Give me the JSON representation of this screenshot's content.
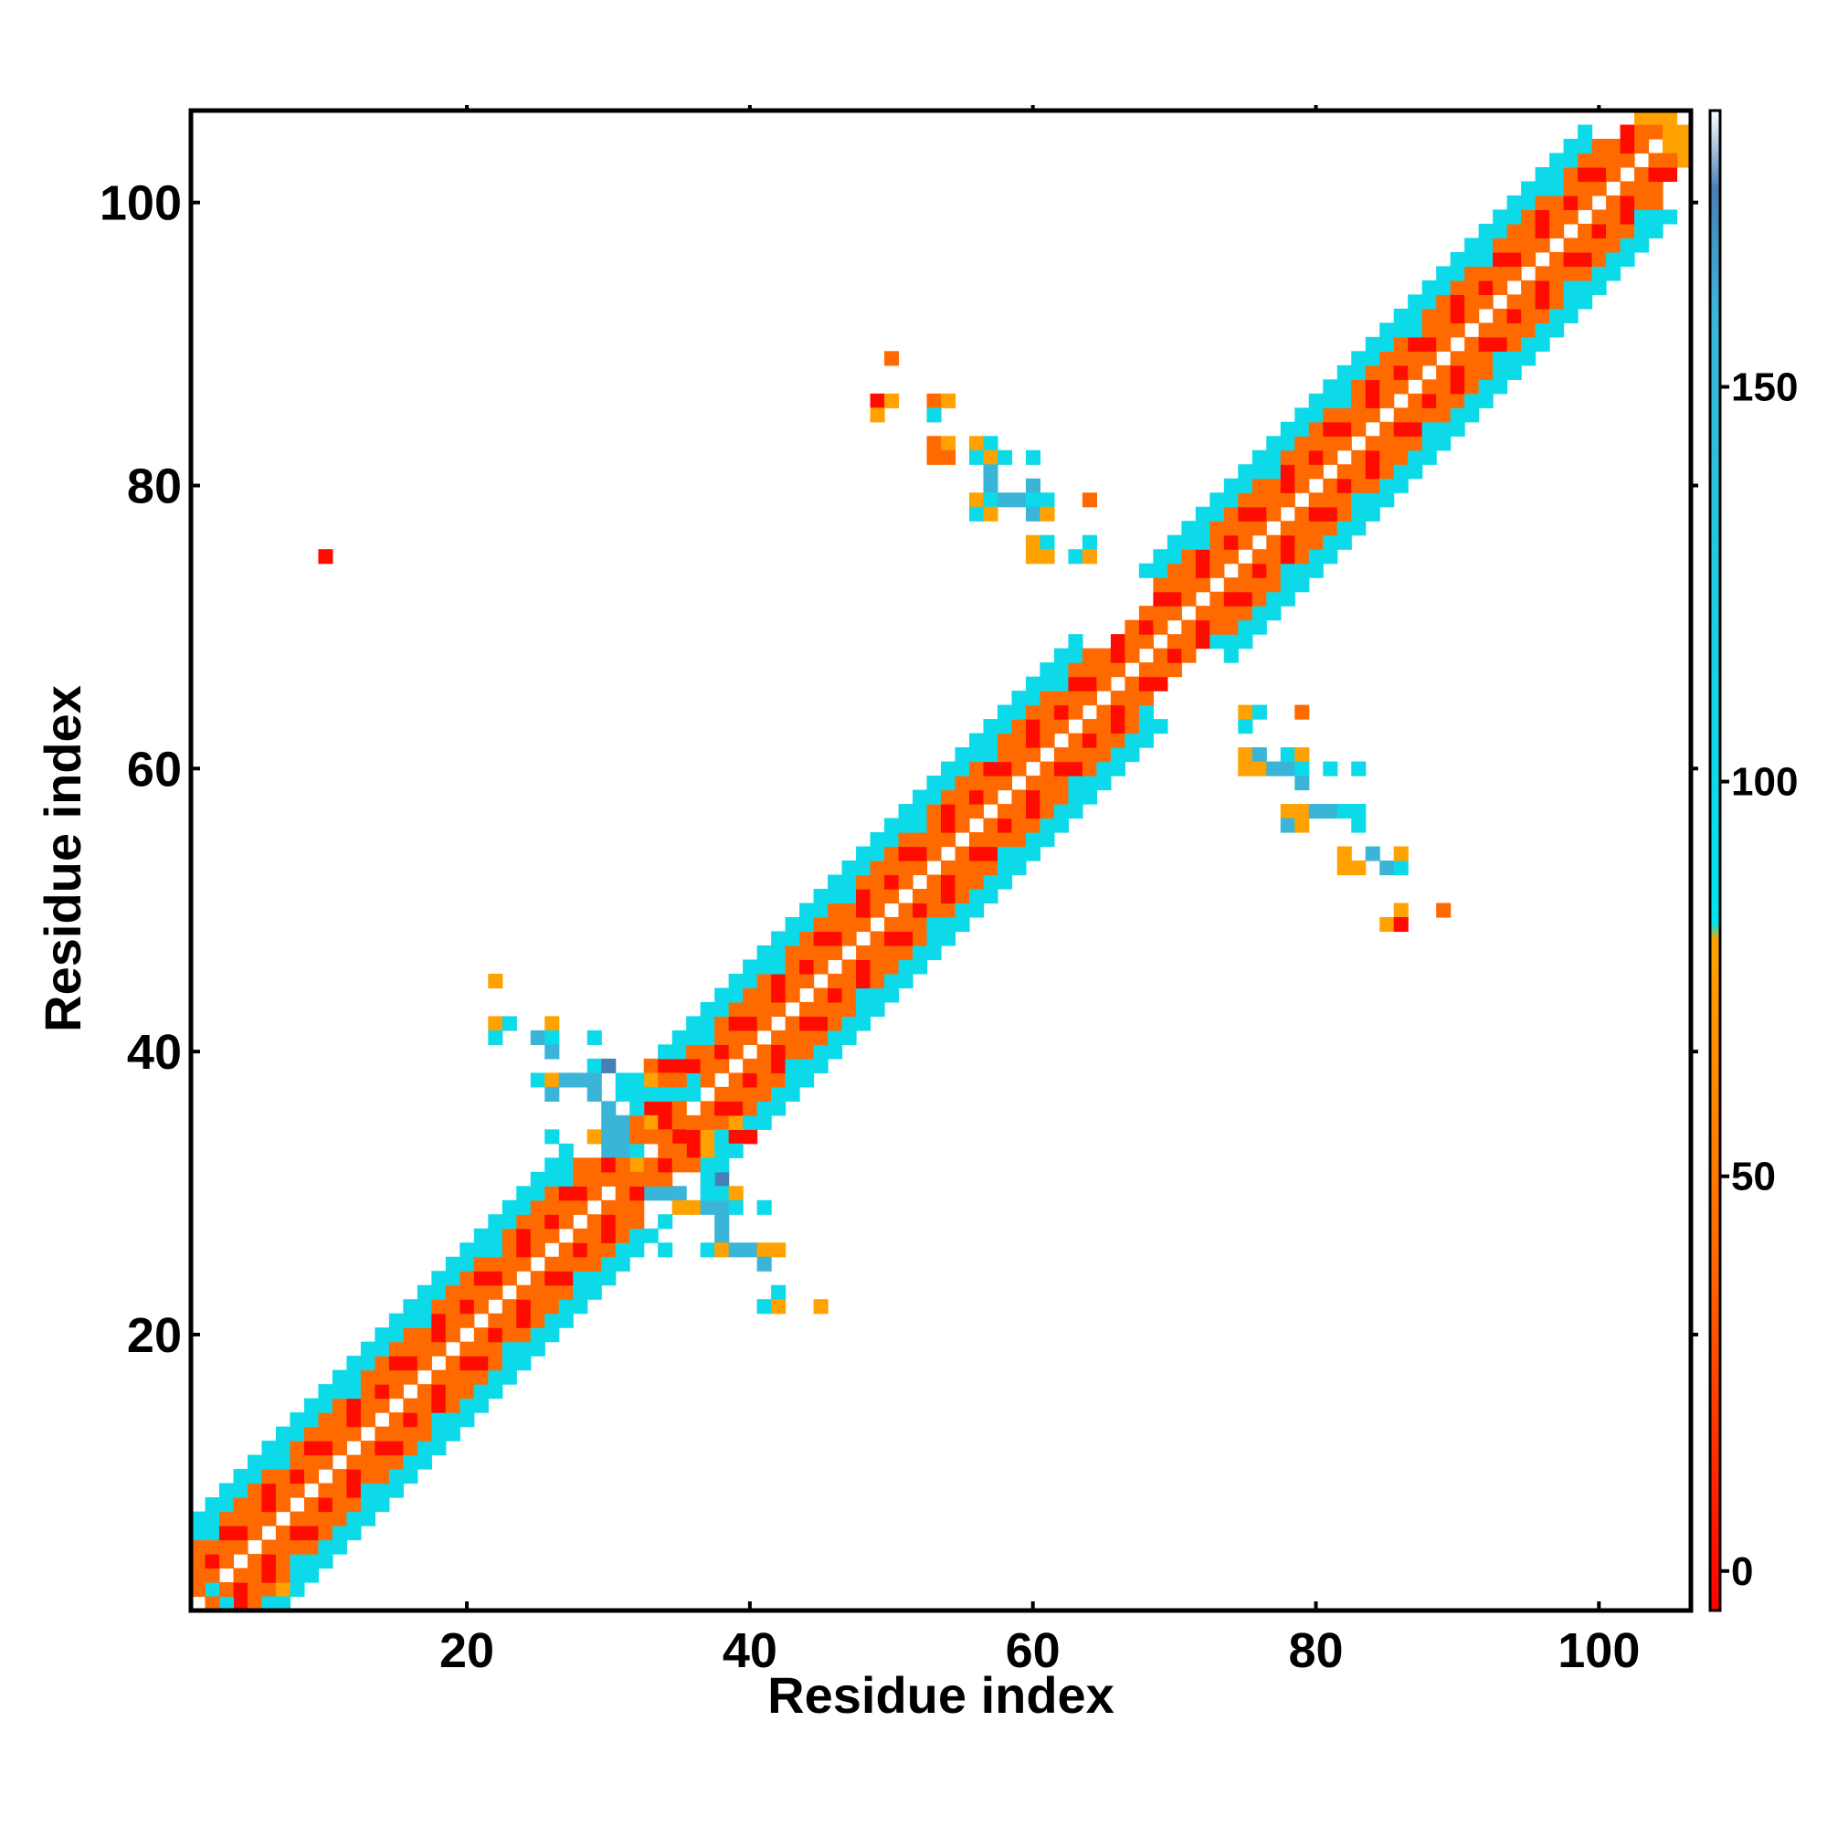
{
  "chart_data": {
    "type": "heatmap",
    "title": "",
    "xlabel": "Residue index",
    "ylabel": "Residue index",
    "xlim": [
      1,
      106
    ],
    "ylim": [
      1,
      106
    ],
    "x_ticks": [
      20,
      40,
      60,
      80,
      100
    ],
    "y_ticks": [
      20,
      40,
      60,
      80,
      100
    ],
    "grid": false,
    "colorbar": {
      "range": [
        -5,
        185
      ],
      "ticks": [
        0,
        50,
        100,
        150
      ],
      "color_stops": [
        {
          "value": -5,
          "color": "#ff0000"
        },
        {
          "value": 40,
          "color": "#ff6a00"
        },
        {
          "value": 80,
          "color": "#ffa200"
        },
        {
          "value": 82,
          "color": "#00e5ee"
        },
        {
          "value": 160,
          "color": "#3ab5d8"
        },
        {
          "value": 175,
          "color": "#4a7fb5"
        },
        {
          "value": 185,
          "color": "#ffffff"
        }
      ]
    },
    "cells": [
      {
        "x": 4,
        "y": 1,
        "v": 0
      },
      {
        "x": 5,
        "y": 1,
        "v": 40
      },
      {
        "x": 6,
        "y": 2,
        "v": 40
      },
      {
        "x": 7,
        "y": 2,
        "v": 80
      },
      {
        "x": 3,
        "y": 1,
        "v": 100
      },
      {
        "x": 2,
        "y": 2,
        "v": 100
      },
      {
        "x": 1,
        "y": 3,
        "v": 40
      },
      {
        "x": 10,
        "y": 75,
        "v": 0
      },
      {
        "x": 22,
        "y": 45,
        "v": 80
      },
      {
        "x": 22,
        "y": 42,
        "v": 80
      },
      {
        "x": 23,
        "y": 42,
        "v": 100
      },
      {
        "x": 22,
        "y": 41,
        "v": 100
      },
      {
        "x": 25,
        "y": 41,
        "v": 160
      },
      {
        "x": 26,
        "y": 42,
        "v": 80
      },
      {
        "x": 26,
        "y": 41,
        "v": 100
      },
      {
        "x": 29,
        "y": 41,
        "v": 100
      },
      {
        "x": 26,
        "y": 40,
        "v": 160
      },
      {
        "x": 29,
        "y": 39,
        "v": 100
      },
      {
        "x": 30,
        "y": 39,
        "v": 175
      },
      {
        "x": 25,
        "y": 38,
        "v": 100
      },
      {
        "x": 26,
        "y": 38,
        "v": 80
      },
      {
        "x": 27,
        "y": 38,
        "v": 160
      },
      {
        "x": 28,
        "y": 38,
        "v": 160
      },
      {
        "x": 29,
        "y": 38,
        "v": 160
      },
      {
        "x": 31,
        "y": 38,
        "v": 100
      },
      {
        "x": 26,
        "y": 37,
        "v": 160
      },
      {
        "x": 29,
        "y": 37,
        "v": 160
      },
      {
        "x": 30,
        "y": 36,
        "v": 160
      },
      {
        "x": 26,
        "y": 34,
        "v": 100
      },
      {
        "x": 29,
        "y": 34,
        "v": 80
      },
      {
        "x": 30,
        "y": 35,
        "v": 160
      },
      {
        "x": 31,
        "y": 35,
        "v": 160
      },
      {
        "x": 30,
        "y": 34,
        "v": 160
      },
      {
        "x": 31,
        "y": 34,
        "v": 160
      },
      {
        "x": 30,
        "y": 33,
        "v": 160
      },
      {
        "x": 31,
        "y": 33,
        "v": 160
      },
      {
        "x": 32,
        "y": 33,
        "v": 100
      },
      {
        "x": 33,
        "y": 30,
        "v": 160
      },
      {
        "x": 34,
        "y": 30,
        "v": 160
      },
      {
        "x": 35,
        "y": 30,
        "v": 160
      },
      {
        "x": 35,
        "y": 29,
        "v": 80
      },
      {
        "x": 36,
        "y": 29,
        "v": 80
      },
      {
        "x": 37,
        "y": 29,
        "v": 160
      },
      {
        "x": 38,
        "y": 29,
        "v": 160
      },
      {
        "x": 38,
        "y": 31,
        "v": 175
      },
      {
        "x": 37,
        "y": 30,
        "v": 100
      },
      {
        "x": 38,
        "y": 30,
        "v": 100
      },
      {
        "x": 39,
        "y": 30,
        "v": 80
      },
      {
        "x": 39,
        "y": 29,
        "v": 100
      },
      {
        "x": 41,
        "y": 29,
        "v": 100
      },
      {
        "x": 38,
        "y": 28,
        "v": 160
      },
      {
        "x": 38,
        "y": 27,
        "v": 160
      },
      {
        "x": 34,
        "y": 28,
        "v": 100
      },
      {
        "x": 34,
        "y": 26,
        "v": 100
      },
      {
        "x": 37,
        "y": 26,
        "v": 100
      },
      {
        "x": 38,
        "y": 26,
        "v": 80
      },
      {
        "x": 39,
        "y": 26,
        "v": 160
      },
      {
        "x": 40,
        "y": 26,
        "v": 160
      },
      {
        "x": 41,
        "y": 26,
        "v": 80
      },
      {
        "x": 42,
        "y": 26,
        "v": 80
      },
      {
        "x": 41,
        "y": 25,
        "v": 160
      },
      {
        "x": 42,
        "y": 23,
        "v": 100
      },
      {
        "x": 41,
        "y": 22,
        "v": 100
      },
      {
        "x": 42,
        "y": 22,
        "v": 80
      },
      {
        "x": 45,
        "y": 22,
        "v": 80
      },
      {
        "x": 33,
        "y": 36,
        "v": 0
      },
      {
        "x": 34,
        "y": 36,
        "v": 0
      },
      {
        "x": 33,
        "y": 35,
        "v": 80
      },
      {
        "x": 34,
        "y": 35,
        "v": 0
      },
      {
        "x": 35,
        "y": 35,
        "v": 40
      },
      {
        "x": 35,
        "y": 34,
        "v": 0
      },
      {
        "x": 36,
        "y": 34,
        "v": 0
      },
      {
        "x": 34,
        "y": 34,
        "v": 40
      },
      {
        "x": 36,
        "y": 33,
        "v": 0
      },
      {
        "x": 37,
        "y": 34,
        "v": 80
      },
      {
        "x": 37,
        "y": 33,
        "v": 80
      },
      {
        "x": 38,
        "y": 35,
        "v": 40
      },
      {
        "x": 38,
        "y": 34,
        "v": 100
      },
      {
        "x": 39,
        "y": 34,
        "v": 0
      },
      {
        "x": 40,
        "y": 34,
        "v": 0
      },
      {
        "x": 39,
        "y": 35,
        "v": 80
      },
      {
        "x": 33,
        "y": 39,
        "v": 40
      },
      {
        "x": 34,
        "y": 39,
        "v": 0
      },
      {
        "x": 35,
        "y": 39,
        "v": 0
      },
      {
        "x": 33,
        "y": 38,
        "v": 80
      },
      {
        "x": 36,
        "y": 38,
        "v": 100
      },
      {
        "x": 35,
        "y": 37,
        "v": 100
      },
      {
        "x": 36,
        "y": 37,
        "v": 100
      },
      {
        "x": 34,
        "y": 37,
        "v": 100
      },
      {
        "x": 33,
        "y": 37,
        "v": 100
      },
      {
        "x": 32,
        "y": 32,
        "v": 80
      },
      {
        "x": 32,
        "y": 34,
        "v": 40
      },
      {
        "x": 31,
        "y": 31,
        "v": 40
      },
      {
        "x": 50,
        "y": 89,
        "v": 40
      },
      {
        "x": 49,
        "y": 86,
        "v": 0
      },
      {
        "x": 50,
        "y": 86,
        "v": 80
      },
      {
        "x": 49,
        "y": 85,
        "v": 80
      },
      {
        "x": 53,
        "y": 86,
        "v": 40
      },
      {
        "x": 54,
        "y": 86,
        "v": 80
      },
      {
        "x": 53,
        "y": 85,
        "v": 100
      },
      {
        "x": 53,
        "y": 83,
        "v": 40
      },
      {
        "x": 54,
        "y": 83,
        "v": 80
      },
      {
        "x": 53,
        "y": 82,
        "v": 40
      },
      {
        "x": 54,
        "y": 82,
        "v": 40
      },
      {
        "x": 56,
        "y": 83,
        "v": 80
      },
      {
        "x": 57,
        "y": 83,
        "v": 100
      },
      {
        "x": 56,
        "y": 82,
        "v": 100
      },
      {
        "x": 57,
        "y": 82,
        "v": 80
      },
      {
        "x": 58,
        "y": 82,
        "v": 100
      },
      {
        "x": 60,
        "y": 82,
        "v": 100
      },
      {
        "x": 57,
        "y": 81,
        "v": 160
      },
      {
        "x": 57,
        "y": 80,
        "v": 160
      },
      {
        "x": 60,
        "y": 80,
        "v": 160
      },
      {
        "x": 56,
        "y": 79,
        "v": 80
      },
      {
        "x": 57,
        "y": 79,
        "v": 100
      },
      {
        "x": 58,
        "y": 79,
        "v": 160
      },
      {
        "x": 59,
        "y": 79,
        "v": 160
      },
      {
        "x": 60,
        "y": 79,
        "v": 100
      },
      {
        "x": 61,
        "y": 79,
        "v": 100
      },
      {
        "x": 64,
        "y": 79,
        "v": 40
      },
      {
        "x": 56,
        "y": 78,
        "v": 100
      },
      {
        "x": 57,
        "y": 78,
        "v": 80
      },
      {
        "x": 60,
        "y": 78,
        "v": 160
      },
      {
        "x": 61,
        "y": 78,
        "v": 80
      },
      {
        "x": 60,
        "y": 76,
        "v": 80
      },
      {
        "x": 61,
        "y": 76,
        "v": 100
      },
      {
        "x": 64,
        "y": 76,
        "v": 100
      },
      {
        "x": 60,
        "y": 75,
        "v": 80
      },
      {
        "x": 61,
        "y": 75,
        "v": 80
      },
      {
        "x": 63,
        "y": 75,
        "v": 100
      },
      {
        "x": 64,
        "y": 75,
        "v": 80
      },
      {
        "x": 75,
        "y": 64,
        "v": 80
      },
      {
        "x": 76,
        "y": 64,
        "v": 100
      },
      {
        "x": 79,
        "y": 64,
        "v": 40
      },
      {
        "x": 75,
        "y": 63,
        "v": 100
      },
      {
        "x": 75,
        "y": 61,
        "v": 80
      },
      {
        "x": 76,
        "y": 61,
        "v": 160
      },
      {
        "x": 78,
        "y": 61,
        "v": 100
      },
      {
        "x": 79,
        "y": 61,
        "v": 80
      },
      {
        "x": 81,
        "y": 60,
        "v": 100
      },
      {
        "x": 83,
        "y": 60,
        "v": 100
      },
      {
        "x": 75,
        "y": 60,
        "v": 80
      },
      {
        "x": 76,
        "y": 60,
        "v": 80
      },
      {
        "x": 77,
        "y": 60,
        "v": 160
      },
      {
        "x": 78,
        "y": 60,
        "v": 160
      },
      {
        "x": 79,
        "y": 60,
        "v": 100
      },
      {
        "x": 79,
        "y": 59,
        "v": 160
      },
      {
        "x": 78,
        "y": 57,
        "v": 80
      },
      {
        "x": 79,
        "y": 57,
        "v": 80
      },
      {
        "x": 80,
        "y": 57,
        "v": 160
      },
      {
        "x": 81,
        "y": 57,
        "v": 160
      },
      {
        "x": 82,
        "y": 57,
        "v": 100
      },
      {
        "x": 78,
        "y": 56,
        "v": 160
      },
      {
        "x": 79,
        "y": 56,
        "v": 80
      },
      {
        "x": 83,
        "y": 57,
        "v": 100
      },
      {
        "x": 83,
        "y": 56,
        "v": 100
      },
      {
        "x": 82,
        "y": 54,
        "v": 80
      },
      {
        "x": 84,
        "y": 54,
        "v": 160
      },
      {
        "x": 82,
        "y": 53,
        "v": 80
      },
      {
        "x": 83,
        "y": 53,
        "v": 80
      },
      {
        "x": 85,
        "y": 53,
        "v": 160
      },
      {
        "x": 86,
        "y": 53,
        "v": 100
      },
      {
        "x": 86,
        "y": 54,
        "v": 80
      },
      {
        "x": 86,
        "y": 50,
        "v": 80
      },
      {
        "x": 85,
        "y": 49,
        "v": 80
      },
      {
        "x": 86,
        "y": 49,
        "v": 0
      },
      {
        "x": 89,
        "y": 50,
        "v": 40
      },
      {
        "x": 103,
        "y": 106,
        "v": 80
      },
      {
        "x": 104,
        "y": 106,
        "v": 80
      },
      {
        "x": 105,
        "y": 106,
        "v": 80
      },
      {
        "x": 104,
        "y": 105,
        "v": 40
      },
      {
        "x": 105,
        "y": 105,
        "v": 80
      },
      {
        "x": 106,
        "y": 105,
        "v": 80
      },
      {
        "x": 105,
        "y": 104,
        "v": 80
      },
      {
        "x": 106,
        "y": 104,
        "v": 80
      },
      {
        "x": 106,
        "y": 103,
        "v": 80
      }
    ]
  }
}
